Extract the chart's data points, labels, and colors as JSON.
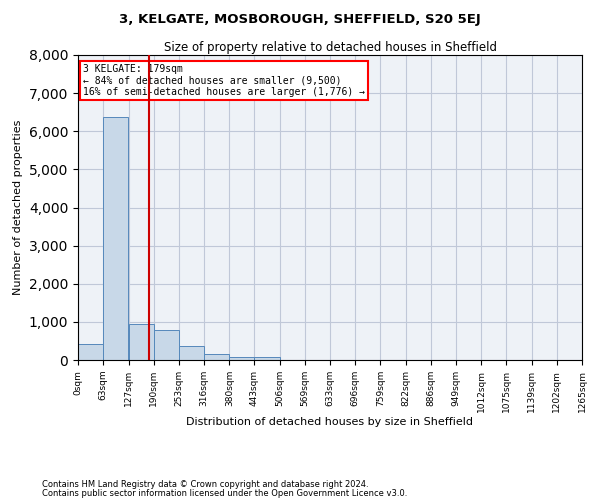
{
  "title": "3, KELGATE, MOSBOROUGH, SHEFFIELD, S20 5EJ",
  "subtitle": "Size of property relative to detached houses in Sheffield",
  "xlabel": "Distribution of detached houses by size in Sheffield",
  "ylabel": "Number of detached properties",
  "footnote1": "Contains HM Land Registry data © Crown copyright and database right 2024.",
  "footnote2": "Contains public sector information licensed under the Open Government Licence v3.0.",
  "annotation_line1": "3 KELGATE: 179sqm",
  "annotation_line2": "← 84% of detached houses are smaller (9,500)",
  "annotation_line3": "16% of semi-detached houses are larger (1,776) →",
  "property_size": 179,
  "bar_color": "#c8d8e8",
  "bar_edge_color": "#5588bb",
  "vline_color": "#cc0000",
  "grid_color": "#c0c8d8",
  "bg_color": "#eef2f7",
  "bin_edges": [
    0,
    63,
    127,
    190,
    253,
    316,
    380,
    443,
    506,
    569,
    633,
    696,
    759,
    822,
    886,
    949,
    1012,
    1075,
    1139,
    1202,
    1265
  ],
  "bin_labels": [
    "0sqm",
    "63sqm",
    "127sqm",
    "190sqm",
    "253sqm",
    "316sqm",
    "380sqm",
    "443sqm",
    "506sqm",
    "569sqm",
    "633sqm",
    "696sqm",
    "759sqm",
    "822sqm",
    "886sqm",
    "949sqm",
    "1012sqm",
    "1075sqm",
    "1139sqm",
    "1202sqm",
    "1265sqm"
  ],
  "counts": [
    430,
    6380,
    950,
    780,
    370,
    160,
    90,
    70,
    0,
    0,
    0,
    0,
    0,
    0,
    0,
    0,
    0,
    0,
    0,
    0
  ],
  "ylim": [
    0,
    8000
  ],
  "yticks": [
    0,
    1000,
    2000,
    3000,
    4000,
    5000,
    6000,
    7000,
    8000
  ]
}
